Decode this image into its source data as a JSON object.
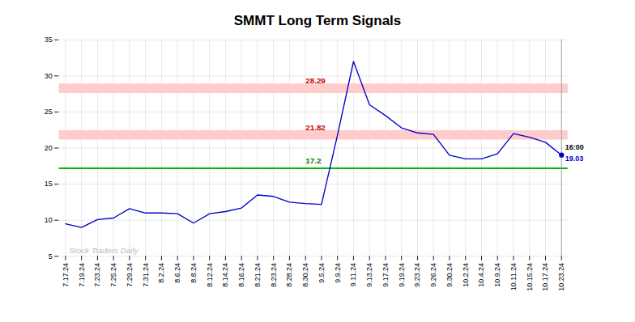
{
  "chart_data": {
    "type": "line",
    "title": "SMMT Long Term Signals",
    "categories": [
      "7.17.24",
      "7.19.24",
      "7.23.24",
      "7.25.24",
      "7.29.24",
      "7.31.24",
      "8.2.24",
      "8.6.24",
      "8.8.24",
      "8.12.24",
      "8.14.24",
      "8.16.24",
      "8.21.24",
      "8.23.24",
      "8.28.24",
      "8.30.24",
      "9.5.24",
      "9.9.24",
      "9.11.24",
      "9.13.24",
      "9.17.24",
      "9.19.24",
      "9.23.24",
      "9.26.24",
      "9.30.24",
      "10.2.24",
      "10.4.24",
      "10.9.24",
      "10.11.24",
      "10.15.24",
      "10.17.24",
      "10.23.24"
    ],
    "values": [
      9.5,
      9.0,
      10.1,
      10.3,
      11.6,
      11.0,
      11.0,
      10.9,
      9.6,
      10.9,
      11.2,
      11.7,
      13.5,
      13.3,
      12.5,
      12.3,
      12.2,
      21.82,
      32.0,
      26.0,
      24.5,
      22.8,
      22.1,
      21.9,
      19.0,
      18.5,
      18.5,
      19.2,
      22.0,
      21.5,
      20.8,
      19.03
    ],
    "color": "#0000cc",
    "ylim": [
      5,
      35
    ],
    "yticks": [
      5,
      10,
      15,
      20,
      25,
      30,
      35
    ],
    "grid": true,
    "reference_lines": [
      {
        "value": 28.29,
        "color": "#ffcccc",
        "line_style": "band"
      },
      {
        "value": 21.82,
        "color": "#ffcccc",
        "line_style": "band"
      },
      {
        "value": 17.2,
        "color": "#00bb00",
        "line_style": "solid"
      }
    ],
    "vertical_lines": [
      {
        "at": "10.23.24",
        "color": "#999999"
      }
    ],
    "annotations": [
      {
        "text": "28.29",
        "at": "8.30.24",
        "y": 28.29,
        "color": "#cc0000"
      },
      {
        "text": "21.82",
        "at": "8.30.24",
        "y": 21.82,
        "color": "#cc0000"
      },
      {
        "text": "17.2",
        "at": "8.30.24",
        "y": 17.2,
        "color": "#007700"
      }
    ],
    "last_point": {
      "time_label": "16:00",
      "value_label": "19.03",
      "color": "#0000cc"
    },
    "watermark": "Stock Traders Daily",
    "watermark_color": "#bbbbbb"
  }
}
